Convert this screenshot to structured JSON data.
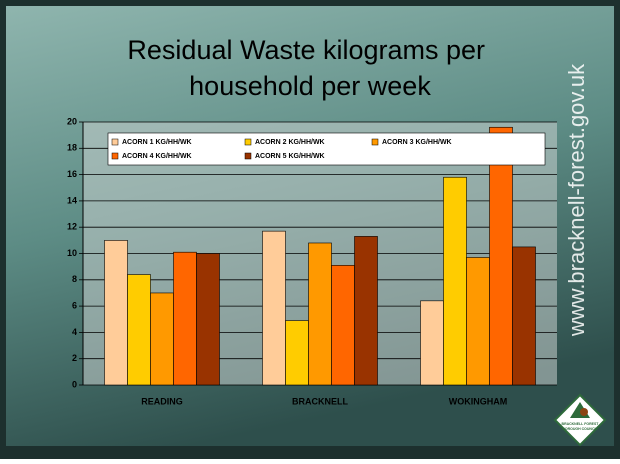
{
  "chart_data": {
    "type": "bar",
    "title": "Residual Waste kilograms per household per week",
    "categories": [
      "READING",
      "BRACKNELL",
      "WOKINGHAM"
    ],
    "series": [
      {
        "name": "ACORN 1 KG/HH/WK",
        "color": "#ffcc99",
        "values": [
          11.0,
          11.7,
          6.4
        ]
      },
      {
        "name": "ACORN 2 KG/HH/WK",
        "color": "#ffcc00",
        "values": [
          8.4,
          4.9,
          15.8
        ]
      },
      {
        "name": "ACORN 3 KG/HH/WK",
        "color": "#ff9900",
        "values": [
          7.0,
          10.8,
          9.7
        ]
      },
      {
        "name": "ACORN 4 KG/HH/WK",
        "color": "#ff6600",
        "values": [
          10.1,
          9.1,
          19.6
        ]
      },
      {
        "name": "ACORN 5 KG/HH/WK",
        "color": "#993300",
        "values": [
          10.0,
          11.3,
          10.5
        ]
      }
    ],
    "ylim": [
      0,
      20
    ],
    "yticks": [
      0,
      2,
      4,
      6,
      8,
      10,
      12,
      14,
      16,
      18,
      20
    ],
    "grid": true,
    "legend": "top-left"
  },
  "website": "www.bracknell-forest.gov.uk",
  "logo": {
    "line1": "BRACKNELL FOREST",
    "line2": "BOROUGH COUNCIL"
  }
}
